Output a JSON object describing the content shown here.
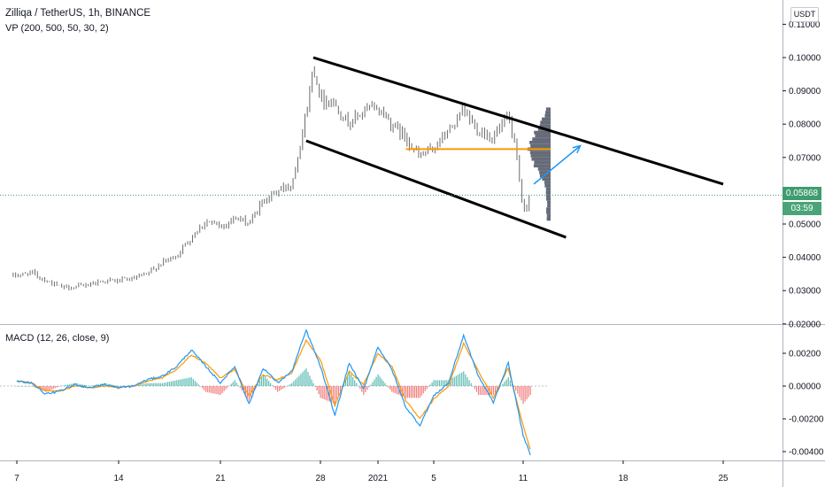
{
  "header": {
    "symbol_title": "Zilliqa / TetherUS, 1h, BINANCE",
    "vp_label": "VP (200, 500, 50, 30, 2)",
    "macd_label": "MACD (12, 26, close, 9)",
    "currency": "USDT"
  },
  "price_tags": {
    "last_price": "0.05868",
    "countdown": "03:59"
  },
  "colors": {
    "up": "#26a69a",
    "down": "#ef5350",
    "candle": "#6b6b6b",
    "macd_line": "#2196f3",
    "signal_line": "#ff9800",
    "hist_up": "#26a69a",
    "hist_down": "#ef5350",
    "volume_profile": "#5d6371",
    "poc_line": "#ff9800",
    "trend_line": "#000000",
    "arrow": "#2196f3",
    "last_price": "#3f9c6e"
  },
  "chart_data": [
    {
      "type": "line",
      "name": "price",
      "x_unit": "date",
      "x_ticks": [
        "7",
        "14",
        "21",
        "28",
        "2021",
        "5",
        "11",
        "18",
        "25"
      ],
      "x_tick_dates": [
        "2020-12-07",
        "2020-12-14",
        "2020-12-21",
        "2020-12-28",
        "2021-01-01",
        "2021-01-05",
        "2021-01-11",
        "2021-01-18",
        "2021-01-25"
      ],
      "y_ticks": [
        "0.11000",
        "0.10000",
        "0.09000",
        "0.08000",
        "0.07000",
        "0.06000",
        "0.05000",
        "0.04000",
        "0.03000",
        "0.02000"
      ],
      "ylim": [
        0.02,
        0.113
      ],
      "close": [
        [
          "2020-12-07",
          0.0345
        ],
        [
          "2020-12-08",
          0.0355
        ],
        [
          "2020-12-09",
          0.033
        ],
        [
          "2020-12-10",
          0.031
        ],
        [
          "2020-12-11",
          0.031
        ],
        [
          "2020-12-12",
          0.032
        ],
        [
          "2020-12-13",
          0.033
        ],
        [
          "2020-12-14",
          0.033
        ],
        [
          "2020-12-15",
          0.0335
        ],
        [
          "2020-12-16",
          0.035
        ],
        [
          "2020-12-17",
          0.0385
        ],
        [
          "2020-12-18",
          0.0405
        ],
        [
          "2020-12-19",
          0.046
        ],
        [
          "2020-12-20",
          0.051
        ],
        [
          "2020-12-21",
          0.049
        ],
        [
          "2020-12-22",
          0.052
        ],
        [
          "2020-12-23",
          0.05
        ],
        [
          "2020-12-24",
          0.057
        ],
        [
          "2020-12-25",
          0.06
        ],
        [
          "2020-12-26",
          0.062
        ],
        [
          "2020-12-27",
          0.083
        ],
        [
          "2020-12-27T12",
          0.0975
        ],
        [
          "2020-12-28",
          0.088
        ],
        [
          "2020-12-29",
          0.086
        ],
        [
          "2020-12-30",
          0.08
        ],
        [
          "2020-12-31",
          0.084
        ],
        [
          "2021-01-01",
          0.085
        ],
        [
          "2021-01-02",
          0.08
        ],
        [
          "2021-01-03",
          0.076
        ],
        [
          "2021-01-04",
          0.07
        ],
        [
          "2021-01-05",
          0.073
        ],
        [
          "2021-01-06",
          0.078
        ],
        [
          "2021-01-07",
          0.084
        ],
        [
          "2021-01-08",
          0.078
        ],
        [
          "2021-01-09",
          0.076
        ],
        [
          "2021-01-10",
          0.082
        ],
        [
          "2021-01-10T12",
          0.072
        ],
        [
          "2021-01-11",
          0.053
        ],
        [
          "2021-01-11T12",
          0.0587
        ]
      ],
      "volume_profile": {
        "price_range": [
          0.051,
          0.085
        ],
        "poc_price": 0.0725
      },
      "drawings": {
        "channel_upper": [
          [
            "2020-12-27T12",
            0.1
          ],
          [
            "2021-01-25",
            0.062
          ]
        ],
        "channel_lower": [
          [
            "2020-12-27",
            0.075
          ],
          [
            "2021-01-14",
            0.046
          ]
        ],
        "arrow": [
          [
            "2021-01-11T18",
            0.062
          ],
          [
            "2021-01-15",
            0.0735
          ]
        ]
      },
      "last_price": 0.05868
    },
    {
      "type": "line",
      "name": "MACD (12, 26, close, 9)",
      "x_unit": "date",
      "y_ticks": [
        "0.00200",
        "0.00000",
        "-0.00200",
        "-0.00400"
      ],
      "ylim": [
        -0.0046,
        0.0037
      ],
      "macd": [
        [
          "2020-12-07",
          0.0003
        ],
        [
          "2020-12-08",
          0.0002
        ],
        [
          "2020-12-09",
          -0.0005
        ],
        [
          "2020-12-10",
          -0.0003
        ],
        [
          "2020-12-11",
          0.0001
        ],
        [
          "2020-12-12",
          -0.0001
        ],
        [
          "2020-12-13",
          0.0001
        ],
        [
          "2020-12-14",
          -0.0001
        ],
        [
          "2020-12-15",
          0.0
        ],
        [
          "2020-12-16",
          0.0004
        ],
        [
          "2020-12-17",
          0.0006
        ],
        [
          "2020-12-18",
          0.0012
        ],
        [
          "2020-12-19",
          0.0022
        ],
        [
          "2020-12-20",
          0.0012
        ],
        [
          "2020-12-21",
          0.0002
        ],
        [
          "2020-12-22",
          0.0012
        ],
        [
          "2020-12-23",
          -0.0011
        ],
        [
          "2020-12-24",
          0.0011
        ],
        [
          "2020-12-25",
          0.0002
        ],
        [
          "2020-12-26",
          0.0009
        ],
        [
          "2020-12-27",
          0.0034
        ],
        [
          "2020-12-28",
          0.0012
        ],
        [
          "2020-12-29",
          -0.0018
        ],
        [
          "2020-12-30",
          0.0014
        ],
        [
          "2020-12-31",
          -0.0002
        ],
        [
          "2021-01-01",
          0.0024
        ],
        [
          "2021-01-02",
          0.001
        ],
        [
          "2021-01-03",
          -0.0013
        ],
        [
          "2021-01-04",
          -0.0024
        ],
        [
          "2021-01-05",
          -0.0006
        ],
        [
          "2021-01-06",
          0.0002
        ],
        [
          "2021-01-07",
          0.0031
        ],
        [
          "2021-01-08",
          0.0006
        ],
        [
          "2021-01-09",
          -0.001
        ],
        [
          "2021-01-10",
          0.0014
        ],
        [
          "2021-01-11",
          -0.003
        ],
        [
          "2021-01-11T12",
          -0.0042
        ]
      ],
      "signal": [
        [
          "2020-12-07",
          0.0003
        ],
        [
          "2020-12-08",
          0.0002
        ],
        [
          "2020-12-09",
          -0.0003
        ],
        [
          "2020-12-10",
          -0.0003
        ],
        [
          "2020-12-11",
          0.0
        ],
        [
          "2020-12-12",
          -0.0001
        ],
        [
          "2020-12-13",
          0.0
        ],
        [
          "2020-12-14",
          -0.0001
        ],
        [
          "2020-12-15",
          0.0
        ],
        [
          "2020-12-16",
          0.0003
        ],
        [
          "2020-12-17",
          0.0005
        ],
        [
          "2020-12-18",
          0.001
        ],
        [
          "2020-12-19",
          0.0019
        ],
        [
          "2020-12-20",
          0.0014
        ],
        [
          "2020-12-21",
          0.0005
        ],
        [
          "2020-12-22",
          0.001
        ],
        [
          "2020-12-23",
          -0.0006
        ],
        [
          "2020-12-24",
          0.0007
        ],
        [
          "2020-12-25",
          0.0004
        ],
        [
          "2020-12-26",
          0.0008
        ],
        [
          "2020-12-27",
          0.0028
        ],
        [
          "2020-12-28",
          0.0016
        ],
        [
          "2020-12-29",
          -0.0012
        ],
        [
          "2020-12-30",
          0.0009
        ],
        [
          "2020-12-31",
          0.0001
        ],
        [
          "2021-01-01",
          0.002
        ],
        [
          "2021-01-02",
          0.0012
        ],
        [
          "2021-01-03",
          -0.0009
        ],
        [
          "2021-01-04",
          -0.002
        ],
        [
          "2021-01-05",
          -0.0008
        ],
        [
          "2021-01-06",
          0.0
        ],
        [
          "2021-01-07",
          0.0026
        ],
        [
          "2021-01-08",
          0.0009
        ],
        [
          "2021-01-09",
          -0.0007
        ],
        [
          "2021-01-10",
          0.0011
        ],
        [
          "2021-01-11",
          -0.0024
        ],
        [
          "2021-01-11T12",
          -0.0039
        ]
      ]
    }
  ]
}
